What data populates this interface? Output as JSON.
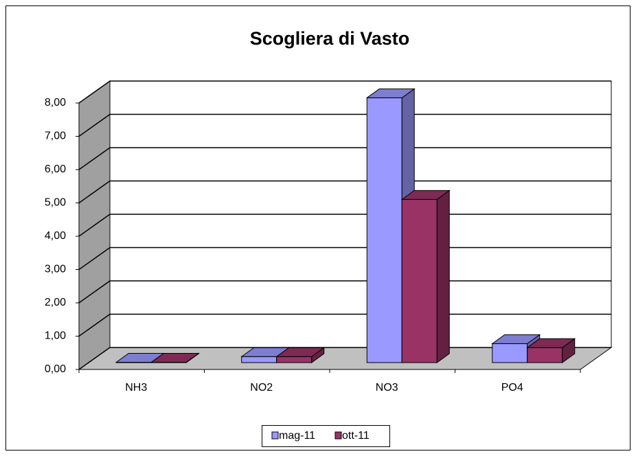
{
  "chart_data": {
    "type": "bar3d",
    "title": "Scogliera di Vasto",
    "categories": [
      "NH3",
      "NO2",
      "NO3",
      "PO4"
    ],
    "series": [
      {
        "name": "mag-11",
        "color": "#9999ff",
        "values": [
          0.01,
          0.18,
          7.95,
          0.57
        ]
      },
      {
        "name": "ott-11",
        "color": "#993366",
        "values": [
          0.01,
          0.18,
          4.9,
          0.45
        ]
      }
    ],
    "ylim": [
      0,
      8
    ],
    "yticks": [
      {
        "value": 0,
        "label": "0,00"
      },
      {
        "value": 1,
        "label": "1,00"
      },
      {
        "value": 2,
        "label": "2,00"
      },
      {
        "value": 3,
        "label": "3,00"
      },
      {
        "value": 4,
        "label": "4,00"
      },
      {
        "value": 5,
        "label": "5,00"
      },
      {
        "value": 6,
        "label": "6,00"
      },
      {
        "value": 7,
        "label": "7,00"
      },
      {
        "value": 8,
        "label": "8,00"
      }
    ],
    "grid": true,
    "legend": "bottom"
  }
}
